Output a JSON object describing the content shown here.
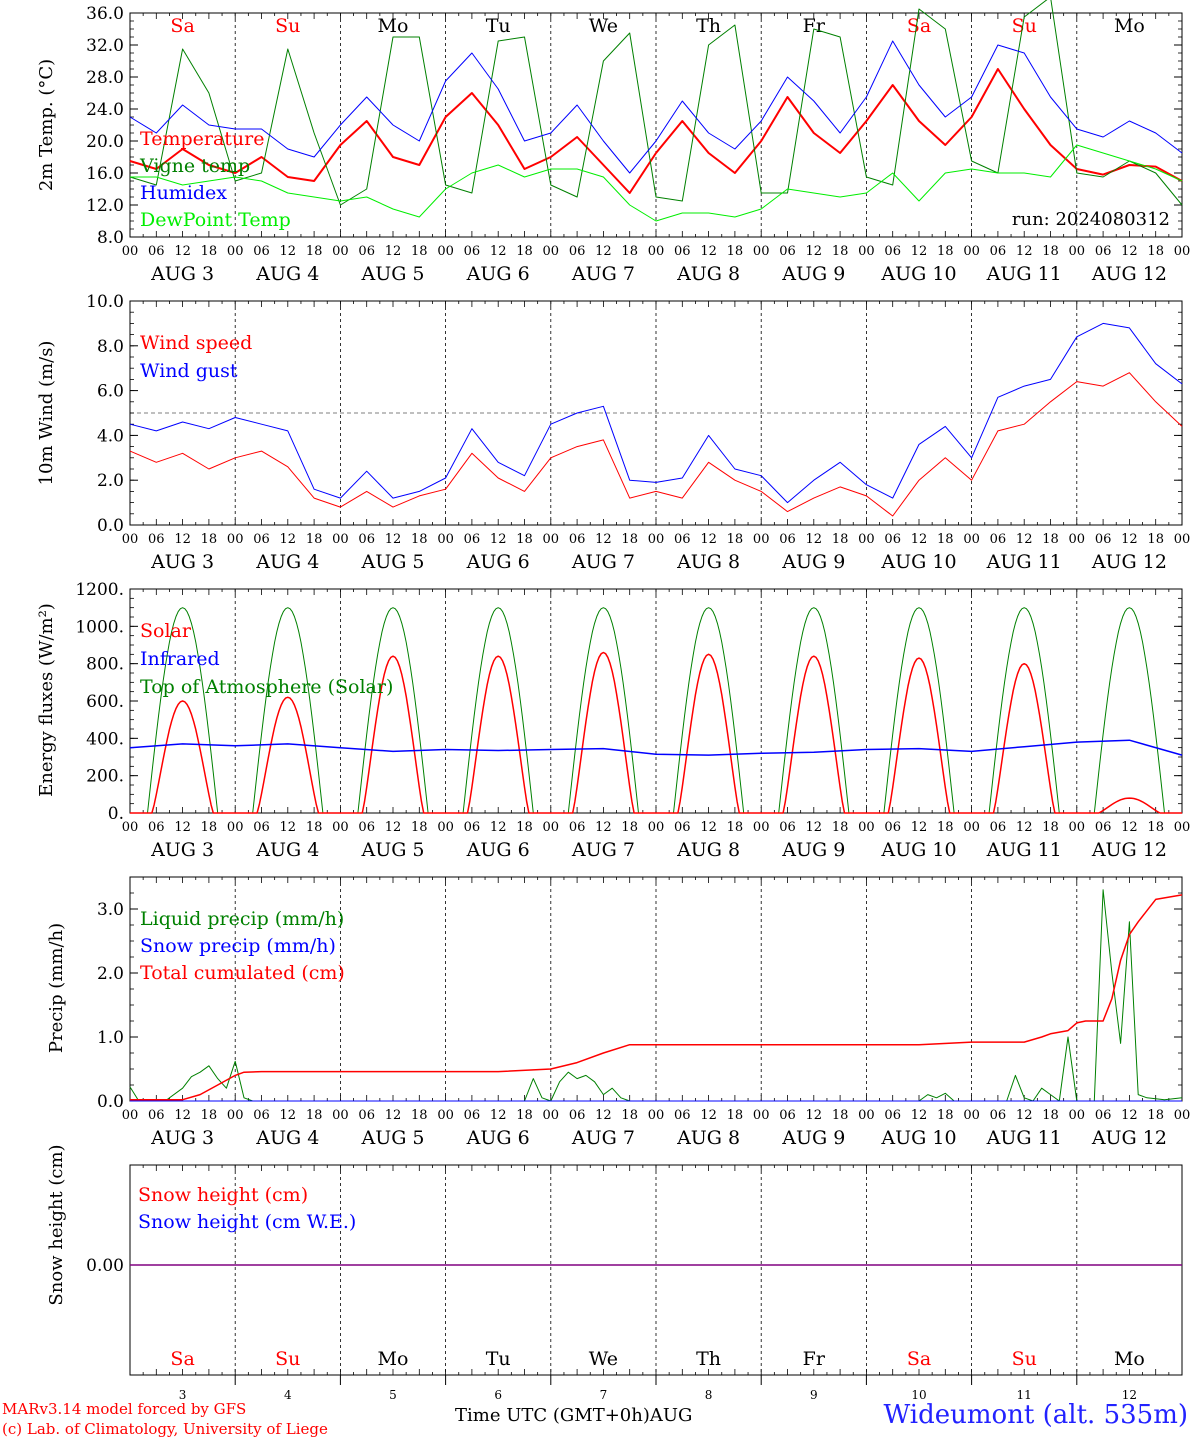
{
  "chart_data": [
    {
      "id": "temp",
      "type": "line",
      "ylabel": "2m Temp. (°C)",
      "ylim": [
        8,
        36
      ],
      "yticks": [
        "8.0",
        "12.0",
        "16.0",
        "20.0",
        "24.0",
        "28.0",
        "32.0",
        "36.0"
      ],
      "ytick_values": [
        8,
        12,
        16,
        20,
        24,
        28,
        32,
        36
      ],
      "x_hours": [
        0,
        6,
        12,
        18,
        24,
        30,
        36,
        42,
        48,
        54,
        60,
        66,
        72,
        78,
        84,
        90,
        96,
        102,
        108,
        114,
        120,
        126,
        132,
        138,
        144,
        150,
        156,
        162,
        168,
        174,
        180,
        186,
        192,
        198,
        204,
        210,
        216,
        222,
        228,
        234,
        240
      ],
      "annotation": "run: 2024080312",
      "series": [
        {
          "name": "Temperature",
          "color": "#ff0000",
          "width": 2,
          "values": [
            17.5,
            16.5,
            19.0,
            17.0,
            16.0,
            18.0,
            15.5,
            15.0,
            19.5,
            22.5,
            18.0,
            17.0,
            23.0,
            26.0,
            22.0,
            16.5,
            18.0,
            20.5,
            17.0,
            13.5,
            18.5,
            22.5,
            18.5,
            16.0,
            20.0,
            25.5,
            21.0,
            18.5,
            22.5,
            27.0,
            22.5,
            19.5,
            23.0,
            29.0,
            24.0,
            19.5,
            16.5,
            15.8,
            17.0,
            16.8,
            15.0
          ]
        },
        {
          "name": "Vigne temp",
          "color": "#008000",
          "width": 1,
          "values": [
            15.5,
            14.5,
            31.5,
            26.0,
            15.0,
            16.0,
            31.5,
            21.0,
            12.0,
            14.0,
            33.0,
            33.0,
            14.5,
            13.5,
            32.5,
            33.0,
            14.5,
            13.0,
            30.0,
            33.5,
            13.0,
            12.5,
            32.0,
            34.5,
            13.5,
            13.5,
            34.0,
            33.0,
            15.5,
            14.5,
            36.5,
            34.0,
            17.5,
            16.0,
            35.5,
            38.0,
            16.0,
            15.5,
            17.5,
            16.0,
            12.0
          ]
        },
        {
          "name": "Humidex",
          "color": "#0000ff",
          "width": 1,
          "values": [
            23.0,
            21.0,
            24.5,
            22.0,
            21.5,
            21.5,
            19.0,
            18.0,
            22.0,
            25.5,
            22.0,
            20.0,
            27.5,
            31.0,
            26.5,
            20.0,
            21.0,
            24.5,
            20.0,
            16.0,
            20.0,
            25.0,
            21.0,
            19.0,
            22.5,
            28.0,
            25.0,
            21.0,
            25.5,
            32.5,
            27.0,
            23.0,
            25.5,
            32.0,
            31.0,
            25.5,
            21.5,
            20.5,
            22.5,
            21.0,
            18.5
          ]
        },
        {
          "name": "DewPoint Temp",
          "color": "#00ee00",
          "width": 1,
          "values": [
            15.5,
            15.5,
            14.5,
            15.0,
            15.5,
            15.0,
            13.5,
            13.0,
            12.5,
            13.0,
            11.5,
            10.5,
            14.0,
            16.0,
            17.0,
            15.5,
            16.5,
            16.5,
            15.5,
            12.0,
            10.0,
            11.0,
            11.0,
            10.5,
            11.5,
            14.0,
            13.5,
            13.0,
            13.5,
            16.0,
            12.5,
            16.0,
            16.5,
            16.0,
            16.0,
            15.5,
            19.5,
            18.5,
            17.5,
            16.5,
            15.0
          ]
        }
      ]
    },
    {
      "id": "wind",
      "type": "line",
      "ylabel": "10m Wind (m/s)",
      "ylim": [
        0,
        10
      ],
      "yticks": [
        "0.0",
        "2.0",
        "4.0",
        "6.0",
        "8.0",
        "10.0"
      ],
      "ytick_values": [
        0,
        2,
        4,
        6,
        8,
        10
      ],
      "reference_line": 5,
      "x_hours": [
        0,
        6,
        12,
        18,
        24,
        30,
        36,
        42,
        48,
        54,
        60,
        66,
        72,
        78,
        84,
        90,
        96,
        102,
        108,
        114,
        120,
        126,
        132,
        138,
        144,
        150,
        156,
        162,
        168,
        174,
        180,
        186,
        192,
        198,
        204,
        210,
        216,
        222,
        228,
        234,
        240
      ],
      "series": [
        {
          "name": "Wind speed",
          "color": "#ff0000",
          "width": 1,
          "values": [
            3.3,
            2.8,
            3.2,
            2.5,
            3.0,
            3.3,
            2.6,
            1.2,
            0.8,
            1.5,
            0.8,
            1.3,
            1.6,
            3.2,
            2.1,
            1.5,
            3.0,
            3.5,
            3.8,
            1.2,
            1.5,
            1.2,
            2.8,
            2.0,
            1.5,
            0.6,
            1.2,
            1.7,
            1.3,
            0.4,
            2.0,
            3.0,
            2.0,
            4.2,
            4.5,
            5.5,
            6.4,
            6.2,
            6.8,
            5.5,
            4.4
          ]
        },
        {
          "name": "Wind gust",
          "color": "#0000ff",
          "width": 1,
          "values": [
            4.5,
            4.2,
            4.6,
            4.3,
            4.8,
            4.5,
            4.2,
            1.6,
            1.2,
            2.4,
            1.2,
            1.5,
            2.1,
            4.3,
            2.8,
            2.2,
            4.5,
            5.0,
            5.3,
            2.0,
            1.9,
            2.1,
            4.0,
            2.5,
            2.2,
            1.0,
            2.0,
            2.8,
            1.8,
            1.2,
            3.6,
            4.4,
            3.0,
            5.7,
            6.2,
            6.5,
            8.4,
            9.0,
            8.8,
            7.2,
            6.3
          ]
        }
      ]
    },
    {
      "id": "energy",
      "type": "line",
      "ylabel": "Energy fluxes (W/m²)",
      "ylim": [
        0,
        1200
      ],
      "yticks": [
        "0.",
        "200.",
        "400.",
        "600.",
        "800.",
        "1000.",
        "1200."
      ],
      "ytick_values": [
        0,
        200,
        400,
        600,
        800,
        1000,
        1200
      ],
      "toa_peak": 1100,
      "solar_peaks": [
        600,
        620,
        840,
        840,
        860,
        850,
        840,
        830,
        800,
        80
      ],
      "infrared_hours": [
        0,
        12,
        24,
        36,
        48,
        60,
        72,
        84,
        96,
        108,
        120,
        132,
        144,
        156,
        168,
        180,
        192,
        204,
        216,
        228,
        240
      ],
      "infrared_values": [
        350,
        370,
        360,
        370,
        350,
        330,
        340,
        335,
        340,
        345,
        315,
        310,
        320,
        325,
        340,
        345,
        330,
        355,
        380,
        390,
        310
      ],
      "series": [
        {
          "name": "Solar",
          "color": "#ff0000"
        },
        {
          "name": "Infrared",
          "color": "#0000ff"
        },
        {
          "name": "Top of Atmosphere (Solar)",
          "color": "#008000"
        }
      ]
    },
    {
      "id": "precip",
      "type": "line",
      "ylabel": "Precip (mm/h)",
      "ylim": [
        0,
        3.5
      ],
      "yticks": [
        "0.0",
        "1.0",
        "2.0",
        "3.0"
      ],
      "ytick_values": [
        0,
        1,
        2,
        3
      ],
      "series": [
        {
          "name": "Liquid precip (mm/h)",
          "color": "#008000",
          "width": 1,
          "x_hours": [
            0,
            2,
            4,
            8,
            12,
            14,
            16,
            18,
            20,
            22,
            24,
            26,
            28,
            30,
            90,
            92,
            94,
            96,
            98,
            100,
            102,
            104,
            106,
            108,
            110,
            112,
            114,
            116,
            180,
            182,
            184,
            186,
            188,
            200,
            202,
            204,
            206,
            208,
            210,
            212,
            214,
            216,
            218,
            220,
            222,
            224,
            226,
            228,
            230,
            232,
            236,
            240
          ],
          "values": [
            0.22,
            0.0,
            0.0,
            0.0,
            0.2,
            0.38,
            0.45,
            0.55,
            0.35,
            0.2,
            0.62,
            0.05,
            0.0,
            0.0,
            0.0,
            0.35,
            0.05,
            0.0,
            0.3,
            0.45,
            0.35,
            0.4,
            0.3,
            0.1,
            0.2,
            0.05,
            0.0,
            0.0,
            0.0,
            0.1,
            0.05,
            0.12,
            0.0,
            0.0,
            0.4,
            0.05,
            0.0,
            0.2,
            0.1,
            0.0,
            1.0,
            0.0,
            0.0,
            0.0,
            3.3,
            2.0,
            0.9,
            2.8,
            0.1,
            0.05,
            0.02,
            0.05
          ]
        },
        {
          "name": "Snow precip (mm/h)",
          "color": "#0000ff",
          "width": 1,
          "x_hours": [
            0,
            240
          ],
          "values": [
            0,
            0
          ]
        },
        {
          "name": "Total cumulated (cm)",
          "color": "#ff0000",
          "width": 1.5,
          "x_hours": [
            0,
            12,
            16,
            20,
            24,
            26,
            30,
            36,
            48,
            60,
            72,
            84,
            96,
            102,
            108,
            114,
            120,
            132,
            144,
            156,
            168,
            180,
            192,
            196,
            204,
            208,
            210,
            214,
            216,
            218,
            220,
            222,
            224,
            226,
            228,
            230,
            234,
            240
          ],
          "values": [
            0.02,
            0.02,
            0.1,
            0.25,
            0.4,
            0.45,
            0.46,
            0.46,
            0.46,
            0.46,
            0.46,
            0.46,
            0.5,
            0.6,
            0.75,
            0.88,
            0.88,
            0.88,
            0.88,
            0.88,
            0.88,
            0.88,
            0.92,
            0.92,
            0.92,
            1.0,
            1.05,
            1.1,
            1.22,
            1.25,
            1.25,
            1.25,
            1.6,
            2.2,
            2.6,
            2.8,
            3.15,
            3.22
          ]
        }
      ]
    },
    {
      "id": "snow",
      "type": "line",
      "ylabel": "Snow height (cm)",
      "yticks": [
        "0.00"
      ],
      "ytick_values": [
        0
      ],
      "series": [
        {
          "name": "Snow height (cm)",
          "color": "#ff0000"
        },
        {
          "name": "Snow height (cm W.E.)",
          "color": "#0000ff"
        }
      ]
    }
  ],
  "x_axis": {
    "hour_labels": [
      "00",
      "06",
      "12",
      "18"
    ],
    "end_label": "00",
    "dates": [
      "AUG  3",
      "AUG  4",
      "AUG  5",
      "AUG  6",
      "AUG  7",
      "AUG  8",
      "AUG  9",
      "AUG 10",
      "AUG 11",
      "AUG 12"
    ],
    "days": [
      "Sa",
      "Su",
      "Mo",
      "Tu",
      "We",
      "Th",
      "Fr",
      "Sa",
      "Su",
      "Mo"
    ],
    "day_colors": [
      "#ff0000",
      "#ff0000",
      "#000000",
      "#000000",
      "#000000",
      "#000000",
      "#000000",
      "#ff0000",
      "#ff0000",
      "#000000"
    ],
    "day_numbers": [
      "3",
      "4",
      "5",
      "6",
      "7",
      "8",
      "9",
      "10",
      "11",
      "12"
    ]
  },
  "footer": {
    "model": "MARv3.14 model forced by GFS",
    "copyright": "(c) Lab. of Climatology, University of Liege",
    "axis_title": "Time UTC (GMT+0h)",
    "month": "AUG",
    "station": "Wideumont (alt. 535m)"
  }
}
